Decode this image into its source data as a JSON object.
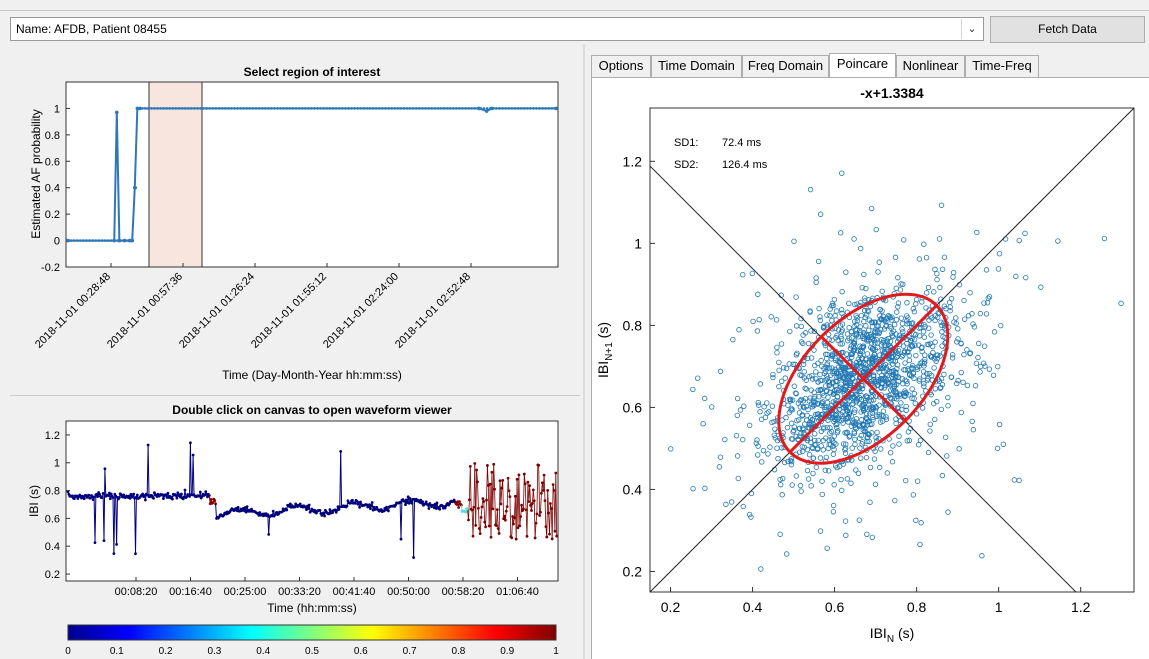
{
  "source_selector": {
    "value": "Name: AFDB, Patient 08455"
  },
  "fetch_button": {
    "label": "Fetch Data"
  },
  "tabs": [
    {
      "label": "Options",
      "active": false
    },
    {
      "label": "Time Domain",
      "active": false
    },
    {
      "label": "Freq Domain",
      "active": false
    },
    {
      "label": "Poincare",
      "active": true
    },
    {
      "label": "Nonlinear",
      "active": false
    },
    {
      "label": "Time-Freq",
      "active": false
    }
  ],
  "chart_data": [
    {
      "type": "line",
      "title": "Select region of interest",
      "xlabel": "Time (Day-Month-Year hh:mm:ss)",
      "ylabel": "Estimated AF probability",
      "ylim": [
        -0.2,
        1.2
      ],
      "y_ticks": [
        "-0.2",
        "0",
        "0.2",
        "0.4",
        "0.6",
        "0.8",
        "1"
      ],
      "x_ticks": [
        "2018-11-01 00:28:48",
        "2018-11-01 00:57:36",
        "2018-11-01 01:26:24",
        "2018-11-01 01:55:12",
        "2018-11-01 02:24:00",
        "2018-11-01 02:52:48"
      ],
      "series": [
        {
          "values_description_free": true,
          "x_minutes": [
            0,
            18,
            19,
            20,
            22,
            24,
            25,
            26,
            27,
            28,
            160,
            163,
            165,
            190
          ],
          "values": [
            0,
            0,
            0.97,
            0,
            0,
            0,
            0,
            0.4,
            1,
            1,
            1,
            0.98,
            1,
            1
          ]
        }
      ],
      "selection_region": {
        "x_minutes": [
          17,
          28
        ]
      },
      "grid": false
    },
    {
      "type": "scatter",
      "title": "Double click on canvas to open waveform viewer",
      "xlabel": "Time (hh:mm:ss)",
      "ylabel": "IBI (s)",
      "ylim": [
        0.15,
        1.3
      ],
      "y_ticks": [
        "0.2",
        "0.4",
        "0.6",
        "0.8",
        "1",
        "1.2"
      ],
      "x_ticks": [
        "00:08:20",
        "00:16:40",
        "00:25:00",
        "00:33:20",
        "00:41:40",
        "00:50:00",
        "00:58:20",
        "01:06:40"
      ],
      "colorbar": {
        "ticks": [
          "0",
          "0.1",
          "0.2",
          "0.3",
          "0.4",
          "0.5",
          "0.6",
          "0.7",
          "0.8",
          "0.9",
          "1"
        ]
      },
      "grid": false
    },
    {
      "type": "scatter",
      "title": "-x+1.3384",
      "xlabel": "IBI",
      "xlabel_sub": "N",
      "xlabel_unit": " (s)",
      "ylabel": "IBI",
      "ylabel_sub": "N+1",
      "ylabel_unit": " (s)",
      "xlim": [
        0.15,
        1.33
      ],
      "ylim": [
        0.15,
        1.33
      ],
      "x_ticks": [
        "0.2",
        "0.4",
        "0.6",
        "0.8",
        "1",
        "1.2"
      ],
      "y_ticks": [
        "0.2",
        "0.4",
        "0.6",
        "0.8",
        "1",
        "1.2"
      ],
      "annotations": [
        {
          "label": "SD1:",
          "value": "72.4 ms"
        },
        {
          "label": "SD2:",
          "value": "126.4 ms"
        }
      ],
      "ellipse": {
        "center": [
          0.67,
          0.67
        ],
        "sd1": 0.0724,
        "sd2": 0.1264
      },
      "lines": [
        "y = x",
        "y = -x+1.3384"
      ],
      "grid": false
    }
  ]
}
